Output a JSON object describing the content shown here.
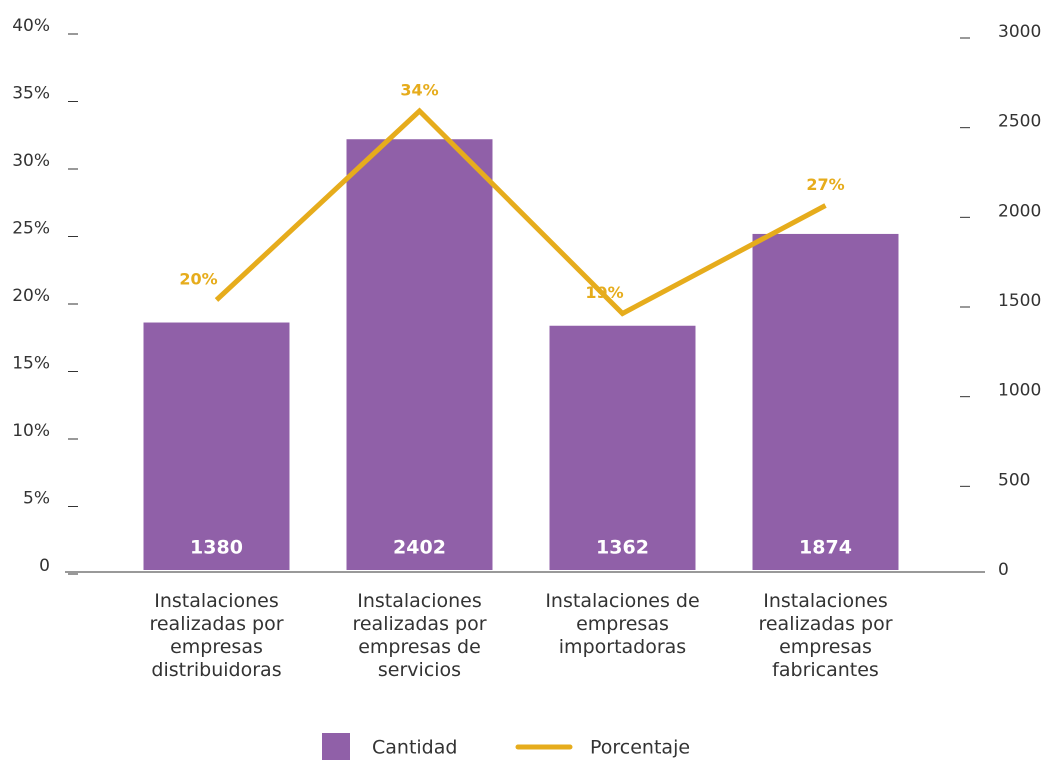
{
  "chart_data": {
    "type": "bar+line",
    "categories": [
      "Instalaciones realizadas por empresas distribuidoras",
      "Instalaciones realizadas por empresas de servicios",
      "Instalaciones de empresas importadoras",
      "Instalaciones realizadas por empresas fabricantes"
    ],
    "series": [
      {
        "name": "Cantidad",
        "type": "bar",
        "color": "#9060a8",
        "axis": "y2",
        "values": [
          1380,
          2402,
          1362,
          1874
        ]
      },
      {
        "name": "Porcentaje",
        "type": "line",
        "color": "#e6ac1c",
        "values": [
          20,
          34,
          19,
          27
        ],
        "value_labels": [
          "20%",
          "34%",
          "19%",
          "27%"
        ]
      }
    ],
    "ylim": [
      0,
      40
    ],
    "yticks": [
      0,
      {
        "value": 5,
        "label": "5%"
      },
      {
        "value": 10,
        "label": "10%"
      },
      {
        "value": 15,
        "label": "15%"
      },
      {
        "value": 20,
        "label": "20%"
      },
      {
        "value": 25,
        "label": "25%"
      },
      {
        "value": 30,
        "label": "30%"
      },
      {
        "value": 35,
        "label": "35%"
      },
      {
        "value": 40,
        "label": "40%"
      }
    ],
    "y2lim": [
      0,
      3000
    ],
    "y2ticks": [
      0,
      500,
      1000,
      1500,
      2000,
      2500,
      3000
    ],
    "legend": "bottom"
  }
}
